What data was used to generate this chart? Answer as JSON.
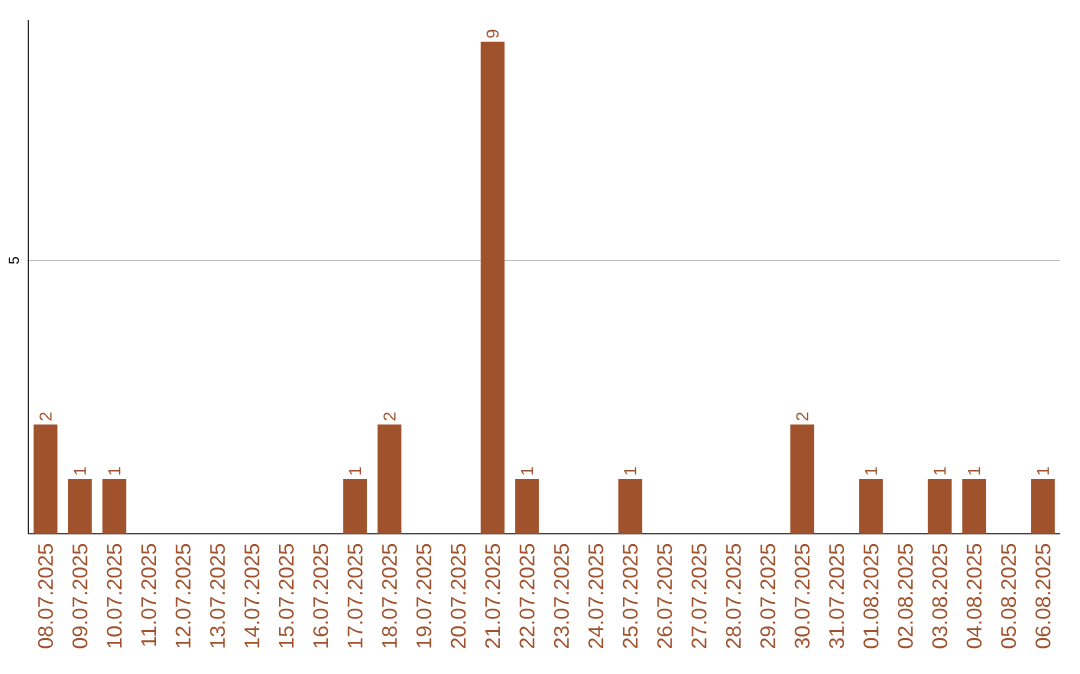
{
  "chart_data": {
    "type": "bar",
    "categories": [
      "08.07.2025",
      "09.07.2025",
      "10.07.2025",
      "11.07.2025",
      "12.07.2025",
      "13.07.2025",
      "14.07.2025",
      "15.07.2025",
      "16.07.2025",
      "17.07.2025",
      "18.07.2025",
      "19.07.2025",
      "20.07.2025",
      "21.07.2025",
      "22.07.2025",
      "23.07.2025",
      "24.07.2025",
      "25.07.2025",
      "26.07.2025",
      "27.07.2025",
      "28.07.2025",
      "29.07.2025",
      "30.07.2025",
      "31.07.2025",
      "01.08.2025",
      "02.08.2025",
      "03.08.2025",
      "04.08.2025",
      "05.08.2025",
      "06.08.2025"
    ],
    "values": [
      2,
      1,
      1,
      0,
      0,
      0,
      0,
      0,
      0,
      1,
      2,
      0,
      0,
      9,
      1,
      0,
      0,
      1,
      0,
      0,
      0,
      0,
      2,
      0,
      1,
      0,
      1,
      1,
      0,
      1
    ],
    "value_labels": [
      "2",
      "1",
      "1",
      null,
      null,
      null,
      null,
      null,
      null,
      "1",
      "2",
      null,
      null,
      "9",
      "1",
      null,
      null,
      "1",
      null,
      null,
      null,
      null,
      "2",
      null,
      "1",
      null,
      "1",
      "1",
      null,
      "1"
    ],
    "color": "#a0522d",
    "ylim": [
      0,
      9.4
    ],
    "yticks": [
      5
    ],
    "grid": "y"
  }
}
